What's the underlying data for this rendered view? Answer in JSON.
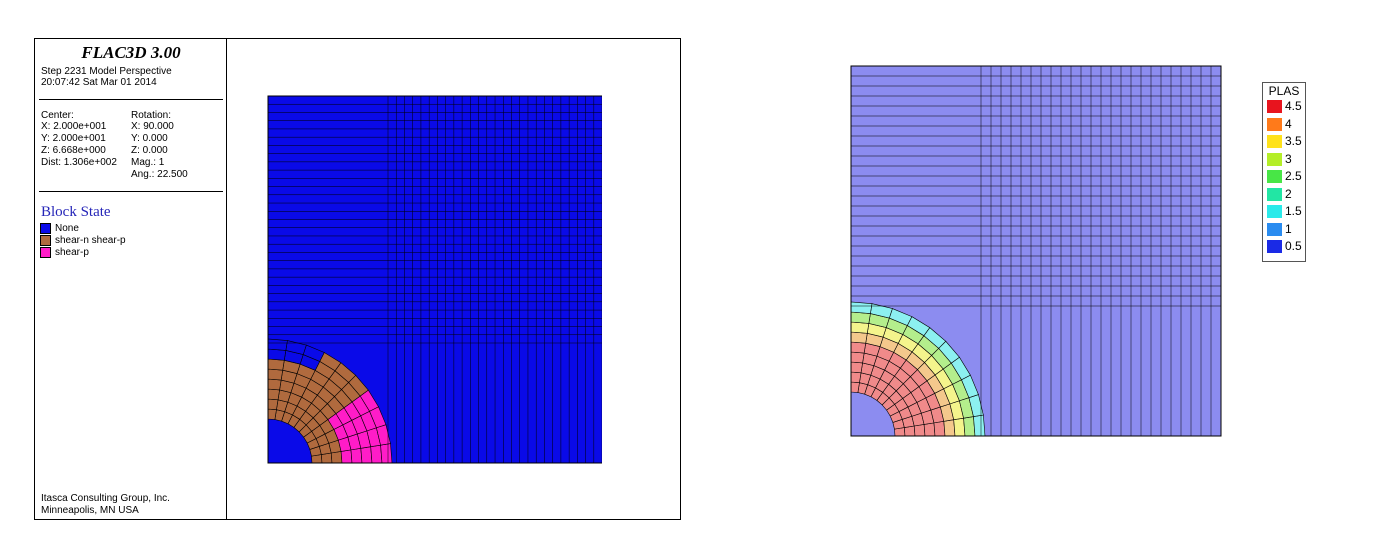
{
  "info": {
    "app_title": "FLAC3D 3.00",
    "step_line": "Step 2231  Model Perspective",
    "time_line": "20:07:42 Sat Mar 01 2014",
    "center_label": "Center:",
    "center_x": "X: 2.000e+001",
    "center_y": "Y: 2.000e+001",
    "center_z": "Z: 6.668e+000",
    "dist": "Dist: 1.306e+002",
    "rotation_label": "Rotation:",
    "rot_x": "X:  90.000",
    "rot_y": "Y:   0.000",
    "rot_z": "Z:   0.000",
    "mag": "Mag.:        1",
    "ang": "Ang.:  22.500",
    "block_state_title": "Block State",
    "footer_line1": "Itasca Consulting Group, Inc.",
    "footer_line2": "Minneapolis, MN  USA"
  },
  "block_state_legend": [
    {
      "label": "None",
      "color": "#0a0ae8"
    },
    {
      "label": "shear-n shear-p",
      "color": "#b06a3e"
    },
    {
      "label": "shear-p",
      "color": "#ff1cc8"
    }
  ],
  "plas_legend": {
    "title": "PLAS",
    "items": [
      {
        "label": "4.5",
        "color": "#e8141e"
      },
      {
        "label": "4",
        "color": "#ff7a1a"
      },
      {
        "label": "3.5",
        "color": "#ffe21a"
      },
      {
        "label": "3",
        "color": "#b4ee28"
      },
      {
        "label": "2.5",
        "color": "#48e646"
      },
      {
        "label": "2",
        "color": "#22e6a4"
      },
      {
        "label": "1.5",
        "color": "#2aeaea"
      },
      {
        "label": "1",
        "color": "#2a8cf0"
      },
      {
        "label": "0.5",
        "color": "#1a2ae6"
      }
    ]
  },
  "contour_colors": {
    "background": "#8c8cf0",
    "plastic_core": "#f08a8a",
    "ring_yellow": "#f4f48c",
    "ring_green": "#b4ee8c",
    "ring_cyan": "#8cf0f0",
    "ring_orange": "#f4c88c"
  }
}
